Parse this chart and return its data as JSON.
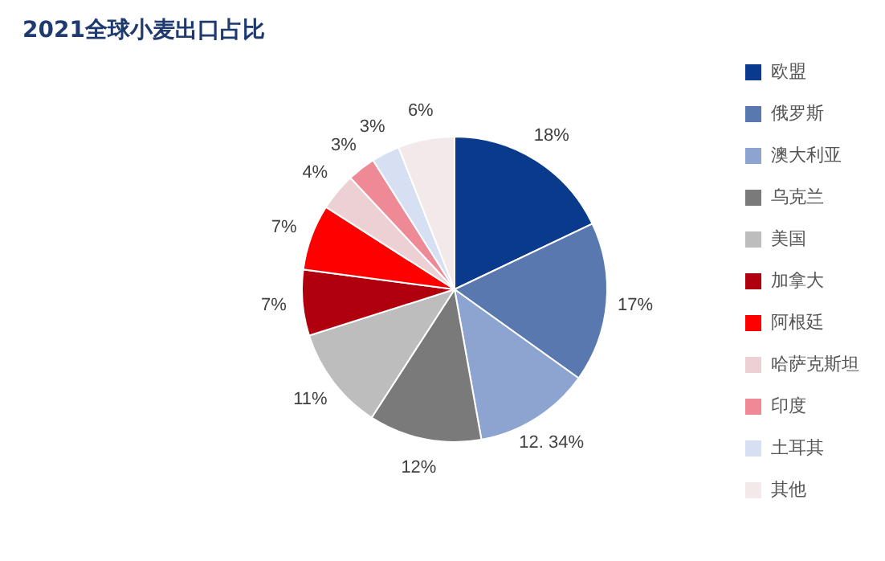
{
  "chart_data": {
    "type": "pie",
    "title": "2021全球小麦出口占比",
    "categories": [
      "欧盟",
      "俄罗斯",
      "澳大利亚",
      "乌克兰",
      "美国",
      "加拿大",
      "阿根廷",
      "哈萨克斯坦",
      "印度",
      "土耳其",
      "其他"
    ],
    "values": [
      18,
      17,
      12.34,
      12,
      11,
      7,
      7,
      4,
      3,
      3,
      6
    ],
    "value_labels": [
      "18%",
      "17%",
      "12. 34%",
      "12%",
      "11%",
      "7%",
      "7%",
      "4%",
      "3%",
      "3%",
      "6%"
    ],
    "colors": [
      "#0a3a8c",
      "#5a78b0",
      "#8ea4d0",
      "#7a7a7a",
      "#bdbdbd",
      "#b0000e",
      "#ff0000",
      "#ecd0d4",
      "#ee8a96",
      "#d6e0f2",
      "#f3e8ea"
    ],
    "legend": "right"
  }
}
